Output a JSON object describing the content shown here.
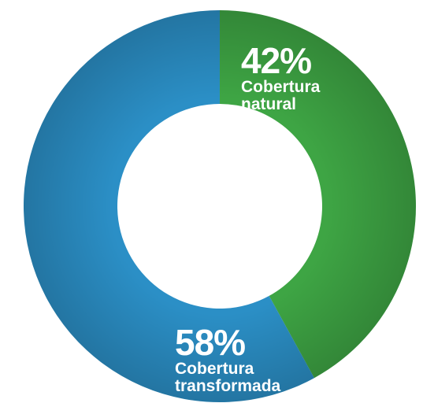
{
  "chart_data": {
    "type": "donut",
    "categories": [
      "Cobertura natural",
      "Cobertura transformada"
    ],
    "values": [
      42,
      58
    ],
    "value_labels": [
      "42%",
      "58%"
    ],
    "colors": [
      "#3ea544",
      "#2b8fc6"
    ]
  }
}
